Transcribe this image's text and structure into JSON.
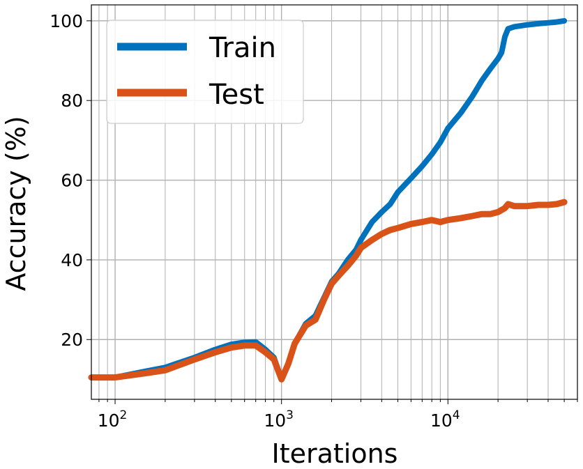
{
  "chart_data": {
    "type": "line",
    "xlabel": "Iterations",
    "ylabel": "Accuracy (%)",
    "x_scale": "log",
    "xlim": [
      72,
      60000
    ],
    "ylim": [
      5,
      104
    ],
    "grid": true,
    "legend": {
      "position": "top-left",
      "entries": [
        "Train",
        "Test"
      ]
    },
    "x_ticks": [
      {
        "base": "10",
        "exp": "2",
        "value": 100
      },
      {
        "base": "10",
        "exp": "3",
        "value": 1000
      },
      {
        "base": "10",
        "exp": "4",
        "value": 10000
      }
    ],
    "y_ticks": [
      20,
      40,
      60,
      80,
      100
    ],
    "series": [
      {
        "name": "Train",
        "color": "#0072BD",
        "points": [
          [
            72,
            10.5
          ],
          [
            100,
            10.5
          ],
          [
            150,
            12.0
          ],
          [
            200,
            13.0
          ],
          [
            300,
            15.5
          ],
          [
            400,
            17.5
          ],
          [
            500,
            18.8
          ],
          [
            600,
            19.3
          ],
          [
            700,
            19.4
          ],
          [
            800,
            17.5
          ],
          [
            900,
            15.5
          ],
          [
            1000,
            10.0
          ],
          [
            1100,
            14.0
          ],
          [
            1200,
            19.0
          ],
          [
            1400,
            24.0
          ],
          [
            1600,
            26.0
          ],
          [
            1800,
            30.5
          ],
          [
            2000,
            34.5
          ],
          [
            2200,
            36.5
          ],
          [
            2500,
            40.0
          ],
          [
            2800,
            42.5
          ],
          [
            3000,
            45.0
          ],
          [
            3500,
            49.5
          ],
          [
            4000,
            52.0
          ],
          [
            4500,
            54.0
          ],
          [
            5000,
            57.0
          ],
          [
            6000,
            60.5
          ],
          [
            7000,
            63.5
          ],
          [
            8000,
            66.5
          ],
          [
            9000,
            69.5
          ],
          [
            10000,
            73.0
          ],
          [
            12000,
            77.0
          ],
          [
            14000,
            81.0
          ],
          [
            16000,
            85.0
          ],
          [
            18000,
            88.0
          ],
          [
            20000,
            90.5
          ],
          [
            21000,
            92.0
          ],
          [
            22000,
            96.0
          ],
          [
            23000,
            98.0
          ],
          [
            25000,
            98.5
          ],
          [
            30000,
            99.0
          ],
          [
            35000,
            99.3
          ],
          [
            40000,
            99.5
          ],
          [
            45000,
            99.7
          ],
          [
            50000,
            100.0
          ]
        ]
      },
      {
        "name": "Test",
        "color": "#D95319",
        "points": [
          [
            72,
            10.5
          ],
          [
            100,
            10.5
          ],
          [
            150,
            11.5
          ],
          [
            200,
            12.3
          ],
          [
            300,
            15.0
          ],
          [
            400,
            16.8
          ],
          [
            500,
            18.0
          ],
          [
            600,
            18.5
          ],
          [
            700,
            18.5
          ],
          [
            800,
            16.8
          ],
          [
            900,
            15.0
          ],
          [
            1000,
            10.0
          ],
          [
            1100,
            14.0
          ],
          [
            1200,
            19.0
          ],
          [
            1400,
            23.5
          ],
          [
            1600,
            25.0
          ],
          [
            1800,
            30.0
          ],
          [
            2000,
            34.0
          ],
          [
            2200,
            36.0
          ],
          [
            2500,
            38.5
          ],
          [
            2800,
            41.0
          ],
          [
            3000,
            43.0
          ],
          [
            3500,
            45.0
          ],
          [
            4000,
            46.5
          ],
          [
            4500,
            47.5
          ],
          [
            5000,
            48.0
          ],
          [
            6000,
            49.0
          ],
          [
            7000,
            49.5
          ],
          [
            8000,
            50.0
          ],
          [
            9000,
            49.5
          ],
          [
            10000,
            50.0
          ],
          [
            12000,
            50.5
          ],
          [
            14000,
            51.0
          ],
          [
            16000,
            51.5
          ],
          [
            18000,
            51.5
          ],
          [
            20000,
            52.0
          ],
          [
            22000,
            53.0
          ],
          [
            23000,
            54.0
          ],
          [
            25000,
            53.5
          ],
          [
            30000,
            53.5
          ],
          [
            35000,
            53.8
          ],
          [
            40000,
            53.8
          ],
          [
            45000,
            54.0
          ],
          [
            50000,
            54.5
          ]
        ]
      }
    ]
  }
}
